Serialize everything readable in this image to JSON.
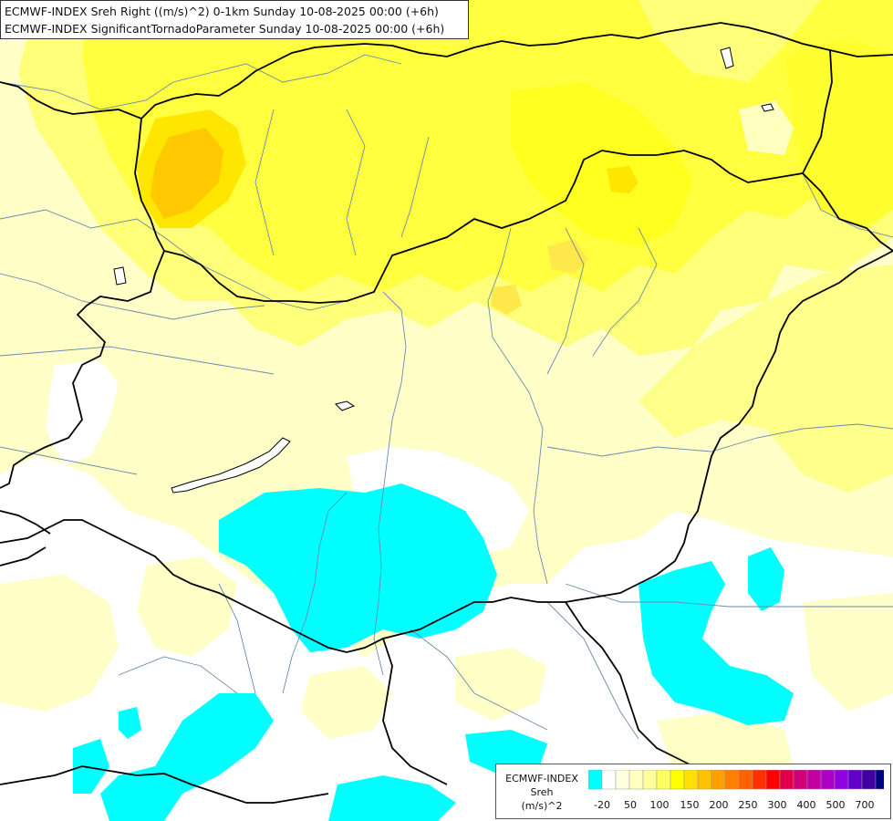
{
  "titles": {
    "line1": "ECMWF-INDEX Sreh Right ((m/s)^2) 0-1km Sunday 10-08-2025 00:00 (+6h)",
    "line2": "ECMWF-INDEX SignificantTornadoParameter Sunday 10-08-2025 00:00 (+6h)"
  },
  "legend": {
    "line1": "ECMWF-INDEX",
    "line2": "Sreh",
    "line3": "(m/s)^2",
    "colors": [
      "#00ffff",
      "#ffffff",
      "#ffffe0",
      "#ffffc0",
      "#ffff9a",
      "#ffff60",
      "#ffff00",
      "#ffe000",
      "#ffc000",
      "#ffa000",
      "#ff8000",
      "#ff6000",
      "#ff3000",
      "#ff0000",
      "#e0004a",
      "#d0007a",
      "#c000a0",
      "#b000c8",
      "#9000e0",
      "#6000c8",
      "#4000a0",
      "#000080"
    ],
    "labels": [
      "-20",
      "50",
      "100",
      "150",
      "200",
      "250",
      "300",
      "400",
      "500",
      "700"
    ]
  }
}
